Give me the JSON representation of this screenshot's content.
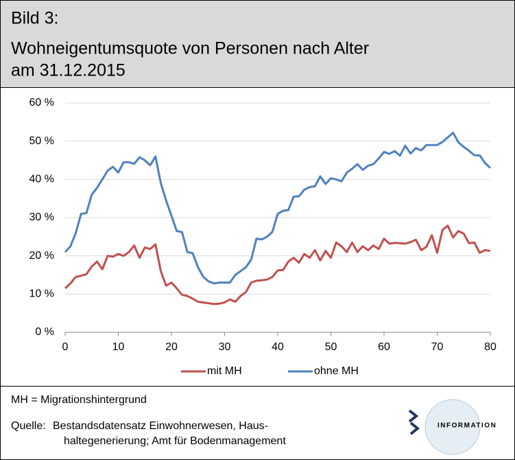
{
  "header": {
    "title_lines": [
      "Bild 3:",
      "Wohneigentumsquote von Personen nach Alter",
      "am 31.12.2015"
    ]
  },
  "chart_data": {
    "type": "line",
    "x": [
      0,
      1,
      2,
      3,
      4,
      5,
      6,
      7,
      8,
      9,
      10,
      11,
      12,
      13,
      14,
      15,
      16,
      17,
      18,
      19,
      20,
      21,
      22,
      23,
      24,
      25,
      26,
      27,
      28,
      29,
      30,
      31,
      32,
      33,
      34,
      35,
      36,
      37,
      38,
      39,
      40,
      41,
      42,
      43,
      44,
      45,
      46,
      47,
      48,
      49,
      50,
      51,
      52,
      53,
      54,
      55,
      56,
      57,
      58,
      59,
      60,
      61,
      62,
      63,
      64,
      65,
      66,
      67,
      68,
      69,
      70,
      71,
      72,
      73,
      74,
      75,
      76,
      77,
      78,
      79,
      80
    ],
    "series": [
      {
        "name": "mit MH",
        "color": "#c0504d",
        "values": [
          11.5,
          12.8,
          14.5,
          14.8,
          15.2,
          17.2,
          18.5,
          16.5,
          20,
          19.8,
          20.5,
          20,
          21,
          22.7,
          19.5,
          22.2,
          21.8,
          23,
          16,
          12.2,
          13,
          11.5,
          9.8,
          9.5,
          8.8,
          8,
          7.8,
          7.6,
          7.4,
          7.5,
          7.8,
          8.6,
          8,
          9.5,
          10.5,
          13,
          13.5,
          13.6,
          13.8,
          14.5,
          16.2,
          16.3,
          18.5,
          19.5,
          18.2,
          20.5,
          19.5,
          21.5,
          18.8,
          21.3,
          19.5,
          23.5,
          22.5,
          21,
          23.5,
          21,
          22.5,
          21.5,
          22.7,
          21.8,
          24.5,
          23.2,
          23.4,
          23.3,
          23.2,
          23.6,
          24.2,
          21.5,
          22.4,
          25.4,
          20.8,
          26.8,
          27.9,
          24.8,
          26.5,
          25.8,
          23.3,
          23.5,
          20.8,
          21.5,
          21.3
        ]
      },
      {
        "name": "ohne MH",
        "color": "#4f81bd",
        "values": [
          21,
          22.5,
          26,
          31,
          31.2,
          36,
          37.8,
          40,
          42.3,
          43.3,
          41.8,
          44.5,
          44.5,
          44.1,
          45.8,
          45,
          43.7,
          46,
          39,
          34.5,
          30.5,
          26.5,
          26.2,
          21,
          20.7,
          17,
          14.5,
          13.3,
          12.8,
          13,
          13,
          13,
          15,
          16,
          17,
          19,
          24.5,
          24.3,
          25,
          26.3,
          31,
          31.8,
          32,
          35.5,
          35.6,
          37.3,
          38,
          38.2,
          40.8,
          38.8,
          40.3,
          40,
          39.5,
          41.8,
          42.8,
          44,
          42.5,
          43.6,
          44,
          45.5,
          47.2,
          46.7,
          47.4,
          46.2,
          48.8,
          46.8,
          48.2,
          47.6,
          49,
          49,
          49,
          49.8,
          51,
          52.2,
          49.7,
          48.5,
          47.5,
          46.3,
          46.3,
          44.3,
          43
        ]
      }
    ],
    "xlim": [
      0,
      80
    ],
    "xticks": [
      0,
      10,
      20,
      30,
      40,
      50,
      60,
      70,
      80
    ],
    "ylim": [
      0,
      60
    ],
    "yticks": [
      {
        "value": 0,
        "label": "0 %"
      },
      {
        "value": 10,
        "label": "10 %"
      },
      {
        "value": 20,
        "label": "20 %"
      },
      {
        "value": 30,
        "label": "30 %"
      },
      {
        "value": 40,
        "label": "40 %"
      },
      {
        "value": 50,
        "label": "50 %"
      },
      {
        "value": 60,
        "label": "60 %"
      }
    ],
    "grid": true,
    "legend": "bottom"
  },
  "footer": {
    "note": "MH = Migrationshintergrund",
    "source_label": "Quelle:",
    "source_lines": [
      "Bestandsdatensatz Einwohnerwesen, Haus-",
      "haltegenerierung; Amt für Bodenmanagement"
    ],
    "logo_text": "INFORMATION"
  }
}
